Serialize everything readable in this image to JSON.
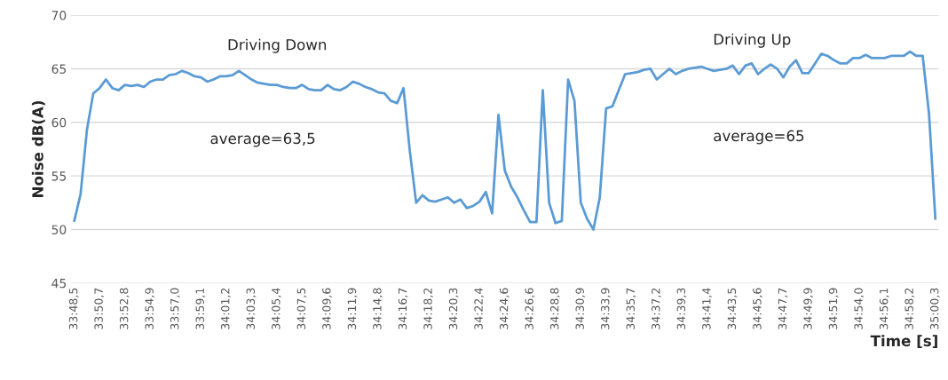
{
  "chart_data": {
    "type": "line",
    "xlabel": "Time [s]",
    "ylabel": "Noise dB(A)",
    "categories": [
      "33:48,5",
      null,
      null,
      null,
      "33:50,7",
      null,
      null,
      null,
      "33:52,8",
      null,
      null,
      null,
      "33:54,9",
      null,
      null,
      null,
      "33:57,0",
      null,
      null,
      null,
      "33:59,1",
      null,
      null,
      null,
      "34:01,2",
      null,
      null,
      null,
      "34:03,3",
      null,
      null,
      null,
      "34:05,4",
      null,
      null,
      null,
      "34:07,5",
      null,
      null,
      null,
      "34:09,6",
      null,
      null,
      null,
      "34:11,9",
      null,
      null,
      null,
      "34:14,8",
      null,
      null,
      null,
      "34:16,7",
      null,
      null,
      null,
      "34:18,2",
      null,
      null,
      null,
      "34:20,3",
      null,
      null,
      null,
      "34:22,4",
      null,
      null,
      null,
      "34:24,6",
      null,
      null,
      null,
      "34:26,6",
      null,
      null,
      null,
      "34:28,8",
      null,
      null,
      null,
      "34:30,9",
      null,
      null,
      null,
      "34:33,9",
      null,
      null,
      null,
      "34:35,7",
      null,
      null,
      null,
      "34:37,2",
      null,
      null,
      null,
      "34:39,3",
      null,
      null,
      null,
      "34:41,4",
      null,
      null,
      null,
      "34:43,5",
      null,
      null,
      null,
      "34:45,6",
      null,
      null,
      null,
      "34:47,7",
      null,
      null,
      null,
      "34:49,9",
      null,
      null,
      null,
      "34:51,9",
      null,
      null,
      null,
      "34:54,0",
      null,
      null,
      null,
      "34:56,1",
      null,
      null,
      null,
      "34:58,2",
      null,
      null,
      null,
      "35:00,3"
    ],
    "series": [
      {
        "color": "#5b9bd5",
        "values": [
          50.8,
          53.3,
          59.3,
          62.7,
          63.2,
          64.0,
          63.2,
          63.0,
          63.5,
          63.4,
          63.5,
          63.3,
          63.8,
          64.0,
          64.0,
          64.4,
          64.5,
          64.8,
          64.6,
          64.3,
          64.2,
          63.8,
          64.0,
          64.3,
          64.3,
          64.4,
          64.8,
          64.4,
          64.0,
          63.7,
          63.6,
          63.5,
          63.5,
          63.3,
          63.2,
          63.2,
          63.5,
          63.1,
          63.0,
          63.0,
          63.5,
          63.1,
          63.0,
          63.3,
          63.8,
          63.6,
          63.3,
          63.1,
          62.8,
          62.7,
          62.0,
          61.8,
          63.2,
          57.3,
          52.5,
          53.2,
          52.7,
          52.6,
          52.8,
          53.0,
          52.5,
          52.8,
          52.0,
          52.2,
          52.6,
          53.5,
          51.5,
          60.7,
          55.5,
          54.0,
          53.0,
          51.8,
          50.7,
          50.7,
          63.0,
          52.5,
          50.6,
          50.8,
          64.0,
          62.0,
          52.5,
          51.0,
          50.0,
          53.0,
          61.3,
          61.5,
          63.0,
          64.5,
          64.6,
          64.7,
          64.9,
          65.0,
          64.0,
          64.5,
          65.0,
          64.5,
          64.8,
          65.0,
          65.1,
          65.2,
          65.0,
          64.8,
          64.9,
          65.0,
          65.3,
          64.5,
          65.3,
          65.5,
          64.5,
          65.0,
          65.4,
          65.0,
          64.2,
          65.2,
          65.8,
          64.6,
          64.6,
          65.5,
          66.4,
          66.2,
          65.8,
          65.5,
          65.5,
          66.0,
          66.0,
          66.3,
          66.0,
          66.0,
          66.0,
          66.2,
          66.2,
          66.2,
          66.6,
          66.2,
          66.2,
          60.8,
          51.0
        ]
      }
    ],
    "ylim": [
      45,
      70
    ],
    "yticks": [
      45,
      50,
      55,
      60,
      65,
      70
    ],
    "grid": "y",
    "marker": "none",
    "line_style": "solid",
    "annotations": [
      "Driving Down",
      "average=63,5",
      "Driving Up",
      "average=65"
    ]
  }
}
